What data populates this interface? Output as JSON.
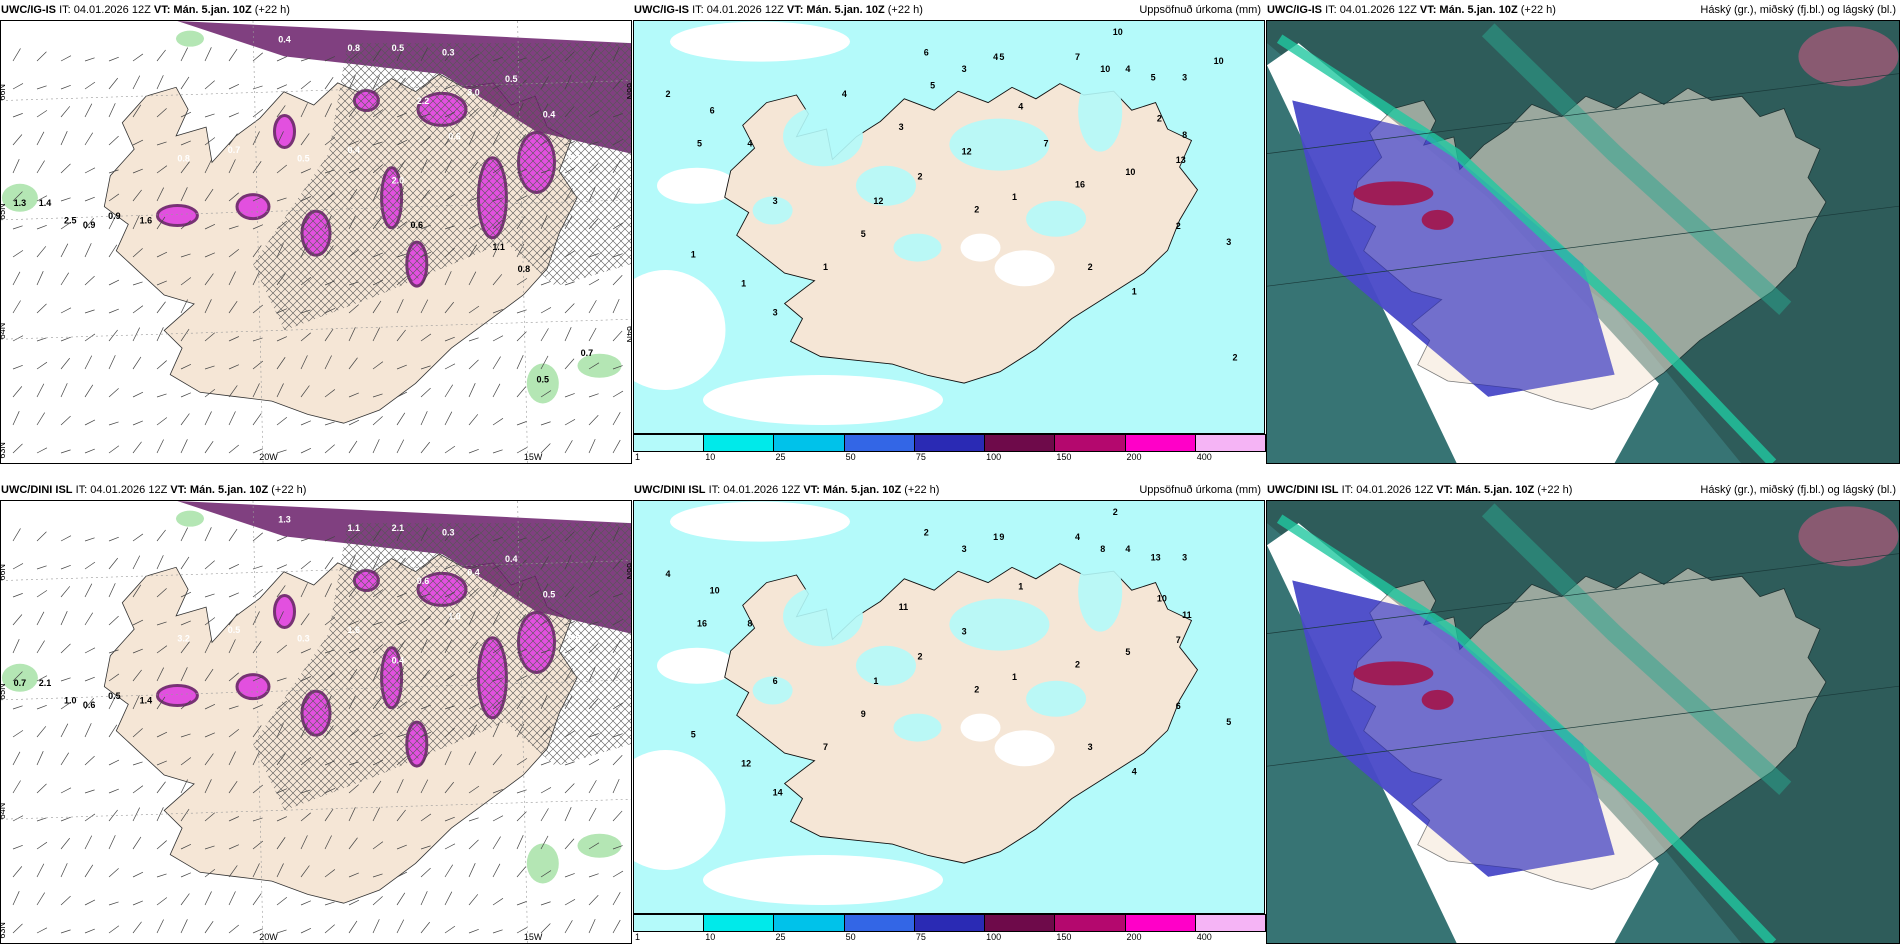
{
  "panels": [
    {
      "model": "UWC/IG-IS",
      "it": "IT: 04.01.2026 12Z",
      "vt_label": "VT:",
      "vt": "Mán. 5.jan. 10Z",
      "lead": "(+22 h)",
      "right": "",
      "type": "wind",
      "lat_labels": [
        "66N",
        "65N",
        "64N",
        "63N"
      ],
      "lat_labels_right": [
        "66N",
        "64N"
      ],
      "lon_labels": [
        "20W",
        "15W"
      ],
      "values": [
        "0.4",
        "0.8",
        "0.5",
        "0.3",
        "3.0",
        "2.2",
        "0.6",
        "0.4",
        "0.5",
        "1.3",
        "1.4",
        "2.5",
        "0.9",
        "0.9",
        "1.6",
        "0.8",
        "0.7",
        "0.5",
        "0.4",
        "0.3",
        "2.0",
        "0.6",
        "1.1",
        "0.8",
        "0.7",
        "0.5"
      ]
    },
    {
      "model": "UWC/IG-IS",
      "it": "IT: 04.01.2026 12Z",
      "vt_label": "VT:",
      "vt": "Mán. 5.jan. 10Z",
      "lead": "(+22 h)",
      "right": "Uppsöfnuð úrkoma (mm)",
      "type": "precip",
      "values": [
        "10",
        "4",
        "6",
        "3",
        "5",
        "7",
        "10",
        "5",
        "4",
        "3",
        "2",
        "8",
        "13",
        "10",
        "16",
        "12",
        "12",
        "3",
        "4",
        "2",
        "1",
        "1",
        "3",
        "5",
        "2",
        "1",
        "2",
        "1",
        "3",
        "2",
        "1",
        "2",
        "4",
        "3",
        "6",
        "5",
        "7",
        "2",
        "10",
        "5",
        "4"
      ]
    },
    {
      "model": "UWC/IG-IS",
      "it": "IT: 04.01.2026 12Z",
      "vt_label": "VT:",
      "vt": "Mán. 5.jan. 10Z",
      "lead": "(+22 h)",
      "right": "Háský (gr.), miðský (fj.bl.) og lágský (bl.)",
      "type": "cloud"
    },
    {
      "model": "UWC/DINI ISL",
      "it": "IT: 04.01.2026 12Z",
      "vt_label": "VT:",
      "vt": "Mán. 5.jan. 10Z",
      "lead": "(+22 h)",
      "right": "",
      "type": "wind",
      "lat_labels": [
        "66N",
        "65N",
        "64N",
        "63N"
      ],
      "lat_labels_right": [
        "66N"
      ],
      "lon_labels": [
        "20W",
        "15W"
      ],
      "values": [
        "1.3",
        "1.1",
        "2.1",
        "0.3",
        "0.4",
        "0.6",
        "1.0",
        "0.5",
        "0.4",
        "0.7",
        "2.1",
        "1.0",
        "0.6",
        "0.5",
        "1.4",
        "3.2",
        "0.5",
        "0.3",
        "1.6",
        "0.5",
        "0.4"
      ]
    },
    {
      "model": "UWC/DINI ISL",
      "it": "IT: 04.01.2026 12Z",
      "vt_label": "VT:",
      "vt": "Mán. 5.jan. 10Z",
      "lead": "(+22 h)",
      "right": "Uppsöfnuð úrkoma (mm)",
      "type": "precip",
      "values": [
        "2",
        "1",
        "2",
        "3",
        "9",
        "4",
        "8",
        "13",
        "4",
        "3",
        "10",
        "11",
        "7",
        "5",
        "2",
        "3",
        "1",
        "6",
        "8",
        "4",
        "5",
        "12",
        "14",
        "9",
        "2",
        "1",
        "3",
        "4",
        "5",
        "6",
        "7",
        "2",
        "1",
        "11",
        "10",
        "16"
      ]
    },
    {
      "model": "UWC/DINI ISL",
      "it": "IT: 04.01.2026 12Z",
      "vt_label": "VT:",
      "vt": "Mán. 5.jan. 10Z",
      "lead": "(+22 h)",
      "right": "Háský (gr.), miðský (fj.bl.) og lágský (bl.)",
      "type": "cloud"
    }
  ],
  "colorbar": {
    "ticks": [
      "1",
      "10",
      "25",
      "50",
      "75",
      "100",
      "150",
      "200",
      "400"
    ],
    "colors": [
      "#b4fafa",
      "#00eaea",
      "#00c2ea",
      "#3366e6",
      "#2a2ab4",
      "#6e0a4a",
      "#b4086e",
      "#ff00c8",
      "#f5b4f5"
    ]
  },
  "colors": {
    "land": "#f5e6d6",
    "sea": "#ffffff",
    "precip_light": "#b4fafa",
    "ice_purple": "#6a1f6a",
    "magenta": "#e040e0",
    "green_light": "#b4e6b4",
    "cloud_dark": "#2e5c5a",
    "cloud_blue": "#4a4ac8",
    "cloud_red": "#a01850",
    "cloud_green": "#20c8a0"
  }
}
